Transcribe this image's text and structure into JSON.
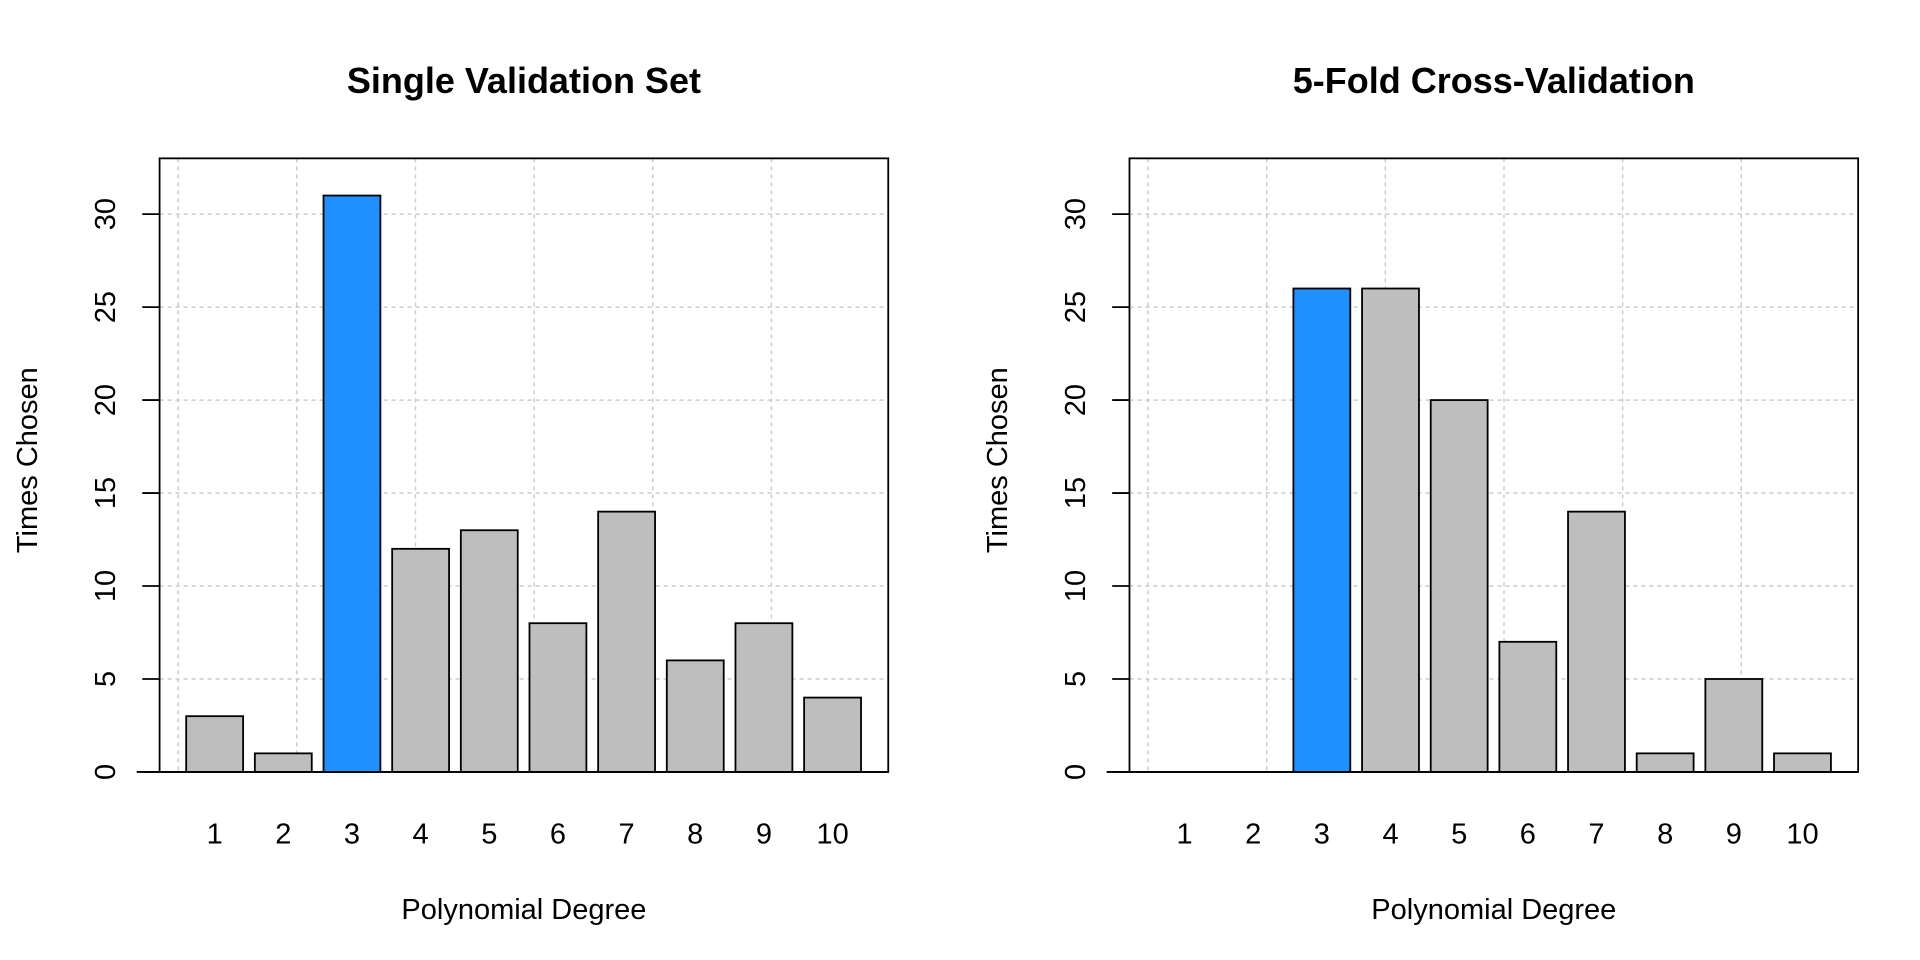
{
  "chart_data": [
    {
      "type": "bar",
      "title": "Single Validation Set",
      "xlabel": "Polynomial Degree",
      "ylabel": "Times Chosen",
      "categories": [
        "1",
        "2",
        "3",
        "4",
        "5",
        "6",
        "7",
        "8",
        "9",
        "10"
      ],
      "values": [
        3,
        1,
        31,
        12,
        13,
        8,
        14,
        6,
        8,
        4
      ],
      "highlight_index": 2,
      "yticks": [
        "0",
        "5",
        "10",
        "15",
        "20",
        "25",
        "30"
      ],
      "ylim": [
        0,
        33
      ],
      "grid": true,
      "bar_color": "#bebebe",
      "highlight_color": "#1e90ff",
      "grid_color": "#cccccc"
    },
    {
      "type": "bar",
      "title": "5-Fold Cross-Validation",
      "xlabel": "Polynomial Degree",
      "ylabel": "Times Chosen",
      "categories": [
        "1",
        "2",
        "3",
        "4",
        "5",
        "6",
        "7",
        "8",
        "9",
        "10"
      ],
      "values": [
        0,
        0,
        26,
        26,
        20,
        7,
        14,
        1,
        5,
        1
      ],
      "highlight_index": 2,
      "yticks": [
        "0",
        "5",
        "10",
        "15",
        "20",
        "25",
        "30"
      ],
      "ylim": [
        0,
        33
      ],
      "grid": true,
      "bar_color": "#bebebe",
      "highlight_color": "#1e90ff",
      "grid_color": "#cccccc"
    }
  ]
}
